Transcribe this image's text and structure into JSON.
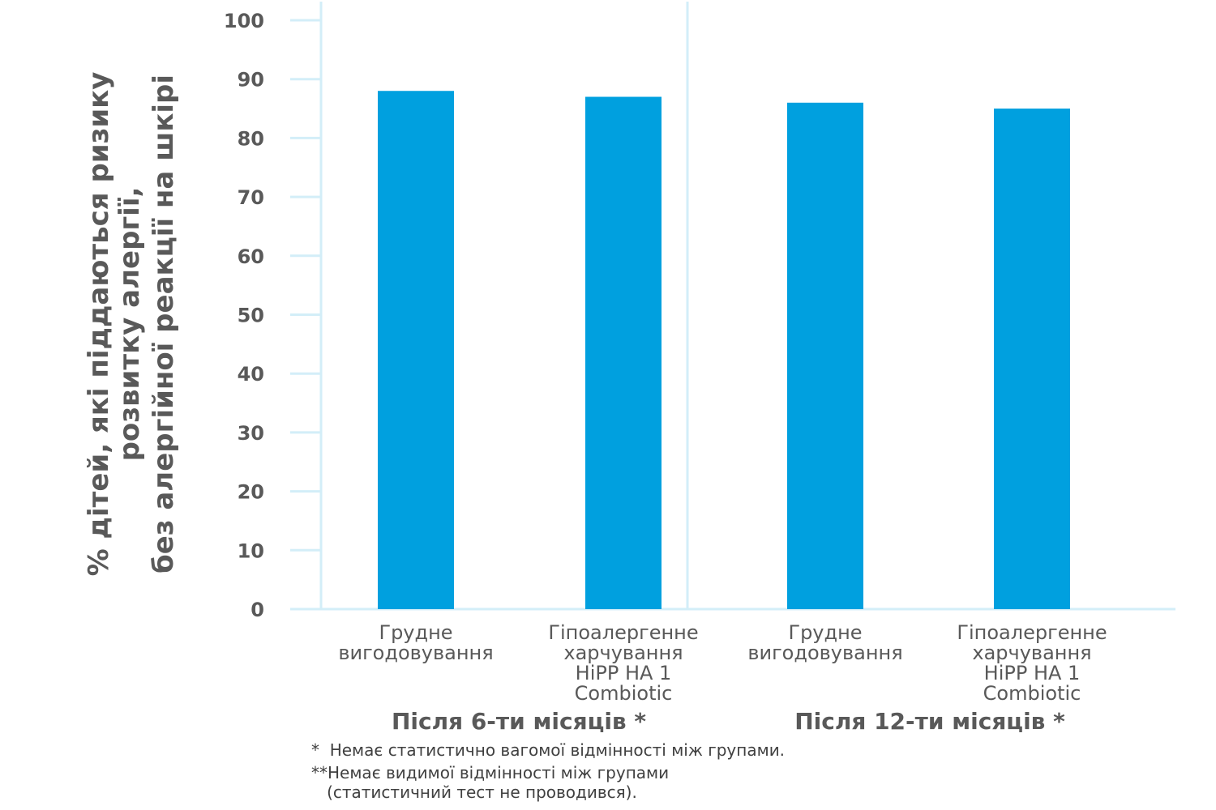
{
  "chart_data": {
    "type": "bar",
    "categories": [
      [
        "Грудне",
        "вигодовування"
      ],
      [
        "Гіпоалергенне",
        "харчування",
        "HiPP HA 1",
        "Combiotic"
      ],
      [
        "Грудне",
        "вигодовування"
      ],
      [
        "Гіпоалергенне",
        "харчування",
        "HiPP HA 1",
        "Combiotic"
      ]
    ],
    "values": [
      88,
      87,
      86,
      85
    ],
    "groups": [
      {
        "label": "Після 6-ти місяців *",
        "category_indices": [
          0,
          1
        ]
      },
      {
        "label": "Після 12-ти місяців *",
        "category_indices": [
          2,
          3
        ]
      }
    ],
    "ylabel_lines": [
      "% дітей, які піддаються  ризику",
      "розвитку алергії,",
      "без алергійної реакції на шкірі"
    ],
    "xlabel": "",
    "ylim": [
      0,
      100
    ],
    "yticks": [
      0,
      10,
      20,
      30,
      40,
      50,
      60,
      70,
      80,
      90,
      100
    ],
    "grid": false,
    "colors": {
      "bar": "#00A0DF",
      "axis": "#D3EEF8",
      "text": "#595959"
    }
  },
  "footnotes": [
    "*  Немає статистично вагомої відмінності між групами.",
    "**Немає видимої відмінності між групами",
    "   (статистичний тест не проводився)."
  ]
}
